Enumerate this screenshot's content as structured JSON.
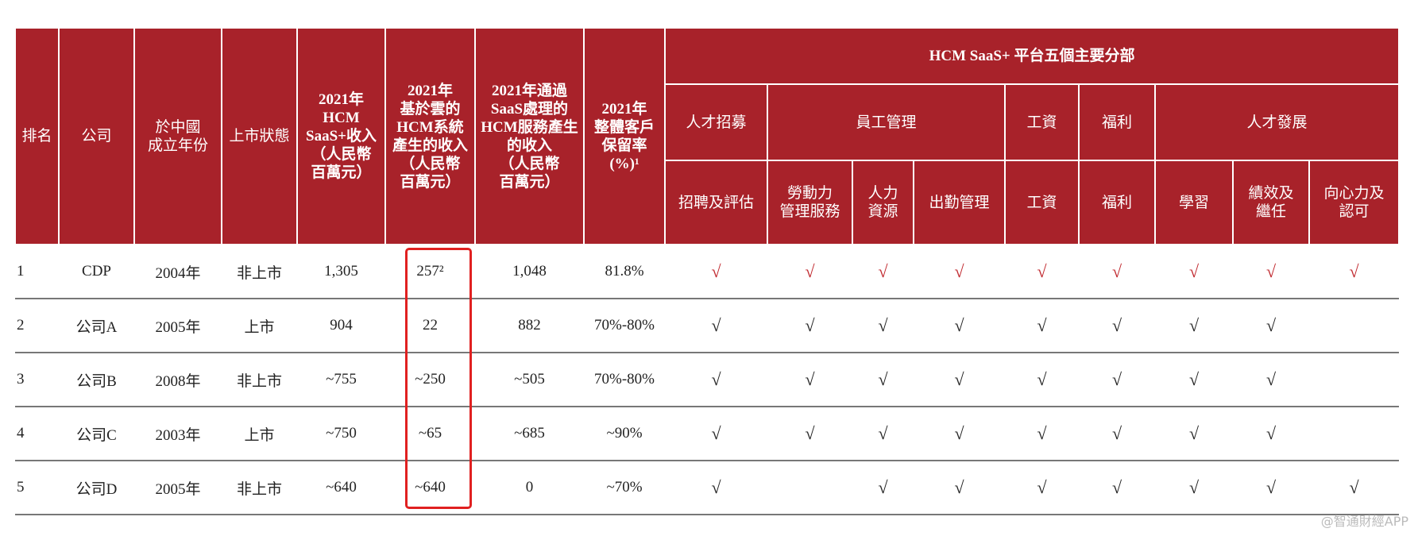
{
  "header": {
    "columns": [
      "排名",
      "公司",
      "於中國\n成立年份",
      "上市狀態",
      "2021年\nHCM\nSaaS+收入\n（人民幣\n百萬元）",
      "2021年\n基於雲的\nHCM系統\n產生的收入\n（人民幣\n百萬元）",
      "2021年通過\nSaaS處理的\nHCM服務產生\n的收入\n（人民幣\n百萬元）",
      "2021年\n整體客戶\n保留率\n(%)¹"
    ],
    "group": "HCM SaaS+ 平台五個主要分部",
    "subgroups": [
      {
        "label": "人才招募",
        "columns": [
          "招聘及評估"
        ]
      },
      {
        "label": "員工管理",
        "columns": [
          "勞動力\n管理服務",
          "人力\n資源",
          "出勤管理"
        ]
      },
      {
        "label": "工資",
        "columns": [
          "工資"
        ]
      },
      {
        "label": "福利",
        "columns": [
          "福利"
        ]
      },
      {
        "label": "人才發展",
        "columns": [
          "學習",
          "績效及\n繼任",
          "向心力及\n認可"
        ]
      }
    ]
  },
  "rows": [
    {
      "cells": [
        "1",
        "CDP",
        "2004年",
        "非上市",
        "1,305",
        "257²",
        "1,048",
        "81.8%"
      ],
      "checks": [
        "√",
        "√",
        "√",
        "√",
        "√",
        "√",
        "√",
        "√",
        "√"
      ]
    },
    {
      "cells": [
        "2",
        "公司A",
        "2005年",
        "上市",
        "904",
        "22",
        "882",
        "70%-80%"
      ],
      "checks": [
        "√",
        "√",
        "√",
        "√",
        "√",
        "√",
        "√",
        "√",
        null
      ]
    },
    {
      "cells": [
        "3",
        "公司B",
        "2008年",
        "非上市",
        "~755",
        "~250",
        "~505",
        "70%-80%"
      ],
      "checks": [
        "√",
        "√",
        "√",
        "√",
        "√",
        "√",
        "√",
        "√",
        null
      ]
    },
    {
      "cells": [
        "4",
        "公司C",
        "2003年",
        "上市",
        "~750",
        "~65",
        "~685",
        "~90%"
      ],
      "checks": [
        "√",
        "√",
        "√",
        "√",
        "√",
        "√",
        "√",
        "√",
        null
      ]
    },
    {
      "cells": [
        "5",
        "公司D",
        "2005年",
        "非上市",
        "~640",
        "~640",
        "0",
        "~70%"
      ],
      "checks": [
        "√",
        null,
        "√",
        "√",
        "√",
        "√",
        "√",
        "√",
        "√"
      ]
    }
  ],
  "watermark": "@智通財經APP"
}
